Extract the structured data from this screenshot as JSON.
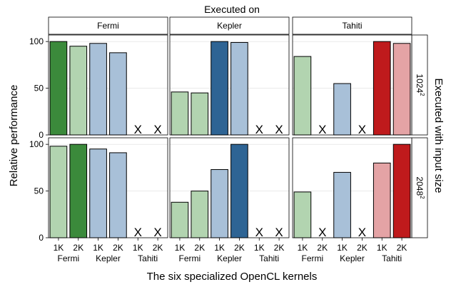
{
  "chart_data": {
    "type": "bar",
    "title": "Executed on",
    "xlabel": "The six specialized OpenCL kernels",
    "ylabel": "Relative performance",
    "right_label": "Executed with input size",
    "columns": [
      "Fermi",
      "Kepler",
      "Tahiti"
    ],
    "rows": [
      {
        "label_base": "1024",
        "label_sup": "2"
      },
      {
        "label_base": "2048",
        "label_sup": "2"
      }
    ],
    "ylim": [
      0,
      107
    ],
    "yticks": [
      "0",
      "50",
      "100"
    ],
    "ytick_values": [
      0,
      50,
      100
    ],
    "categories": [
      "1K",
      "2K",
      "1K",
      "2K",
      "1K",
      "2K"
    ],
    "category_groups": [
      "Fermi",
      "Kepler",
      "Tahiti"
    ],
    "missing_marker": "X",
    "colors": {
      "fermi_light": "#b2d4b0",
      "fermi_dark": "#3b8a3b",
      "kepler_light": "#a8c0d8",
      "kepler_dark": "#2e6494",
      "tahiti_light": "#e4a3a5",
      "tahiti_dark": "#bf1a1c",
      "strip_fill": "#ffffff",
      "panel_fill": "#ffffff",
      "gridline": "#dddddd"
    },
    "panels": [
      {
        "row": 0,
        "col": 0,
        "values": [
          100,
          95,
          98,
          88,
          null,
          null
        ],
        "highlight": 0
      },
      {
        "row": 0,
        "col": 1,
        "values": [
          46,
          45,
          100,
          99,
          null,
          null
        ],
        "highlight": 2
      },
      {
        "row": 0,
        "col": 2,
        "values": [
          84,
          null,
          55,
          null,
          100,
          98
        ],
        "highlight": 4
      },
      {
        "row": 1,
        "col": 0,
        "values": [
          98,
          100,
          95,
          91,
          null,
          null
        ],
        "highlight": 1
      },
      {
        "row": 1,
        "col": 1,
        "values": [
          38,
          50,
          73,
          100,
          null,
          null
        ],
        "highlight": 3
      },
      {
        "row": 1,
        "col": 2,
        "values": [
          49,
          null,
          70,
          null,
          80,
          100
        ],
        "highlight": 5
      }
    ]
  }
}
